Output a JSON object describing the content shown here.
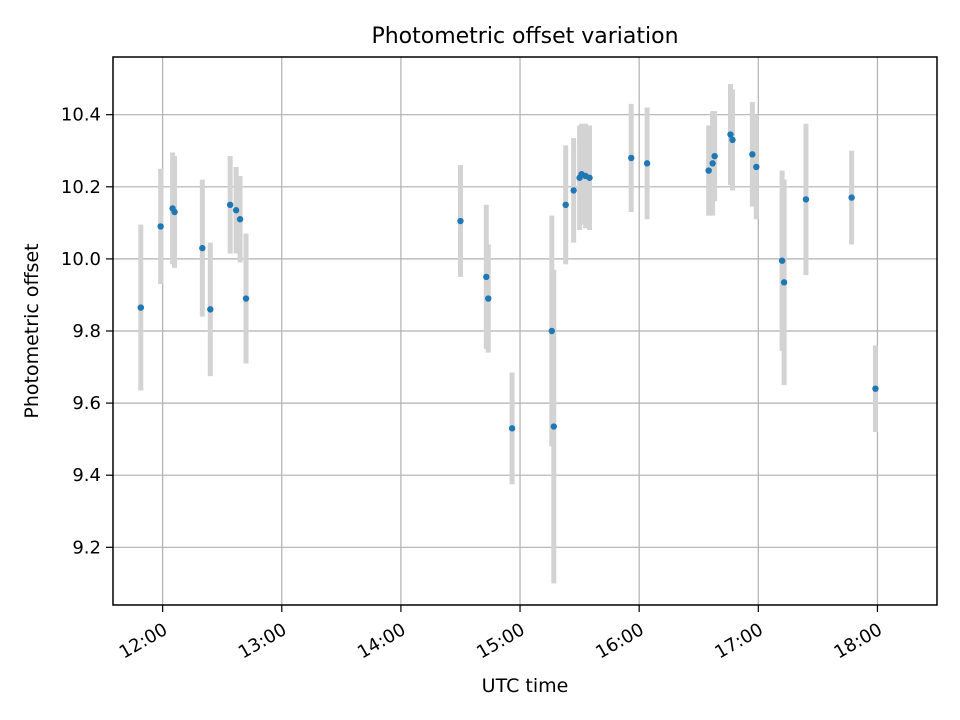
{
  "chart_data": {
    "type": "scatter",
    "title": "Photometric offset variation",
    "xlabel": "UTC time",
    "ylabel": "Photometric offset",
    "x_ticks": [
      "12:00",
      "13:00",
      "14:00",
      "15:00",
      "16:00",
      "17:00",
      "18:00"
    ],
    "y_ticks": [
      "9.2",
      "9.4",
      "9.6",
      "9.8",
      "10.0",
      "10.2",
      "10.4"
    ],
    "xlim": [
      "11:35",
      "18:30"
    ],
    "ylim": [
      9.04,
      10.56
    ],
    "grid": true,
    "point_color": "#1f77b4",
    "errorbar_color": "#d3d3d3",
    "series": [
      {
        "points": [
          {
            "x": "11:49",
            "y": 9.865,
            "yerr": 0.23
          },
          {
            "x": "11:59",
            "y": 10.09,
            "yerr": 0.16
          },
          {
            "x": "12:05",
            "y": 10.14,
            "yerr": 0.155
          },
          {
            "x": "12:06",
            "y": 10.13,
            "yerr": 0.155
          },
          {
            "x": "12:20",
            "y": 10.03,
            "yerr": 0.19
          },
          {
            "x": "12:24",
            "y": 9.86,
            "yerr": 0.185
          },
          {
            "x": "12:34",
            "y": 10.15,
            "yerr": 0.135
          },
          {
            "x": "12:37",
            "y": 10.135,
            "yerr": 0.12
          },
          {
            "x": "12:39",
            "y": 10.11,
            "yerr": 0.12
          },
          {
            "x": "12:42",
            "y": 9.89,
            "yerr": 0.18
          },
          {
            "x": "14:30",
            "y": 10.105,
            "yerr": 0.155
          },
          {
            "x": "14:43",
            "y": 9.95,
            "yerr": 0.2
          },
          {
            "x": "14:44",
            "y": 9.89,
            "yerr": 0.15
          },
          {
            "x": "14:56",
            "y": 9.53,
            "yerr": 0.155
          },
          {
            "x": "15:16",
            "y": 9.8,
            "yerr": 0.32
          },
          {
            "x": "15:17",
            "y": 9.535,
            "yerr": 0.435
          },
          {
            "x": "15:23",
            "y": 10.15,
            "yerr": 0.165
          },
          {
            "x": "15:27",
            "y": 10.19,
            "yerr": 0.145
          },
          {
            "x": "15:30",
            "y": 10.225,
            "yerr": 0.145
          },
          {
            "x": "15:31",
            "y": 10.235,
            "yerr": 0.14
          },
          {
            "x": "15:33",
            "y": 10.23,
            "yerr": 0.145
          },
          {
            "x": "15:35",
            "y": 10.225,
            "yerr": 0.145
          },
          {
            "x": "15:56",
            "y": 10.28,
            "yerr": 0.15
          },
          {
            "x": "16:04",
            "y": 10.265,
            "yerr": 0.155
          },
          {
            "x": "16:35",
            "y": 10.245,
            "yerr": 0.125
          },
          {
            "x": "16:37",
            "y": 10.265,
            "yerr": 0.145
          },
          {
            "x": "16:38",
            "y": 10.285,
            "yerr": 0.125
          },
          {
            "x": "16:46",
            "y": 10.345,
            "yerr": 0.14
          },
          {
            "x": "16:47",
            "y": 10.33,
            "yerr": 0.14
          },
          {
            "x": "16:57",
            "y": 10.29,
            "yerr": 0.145
          },
          {
            "x": "16:59",
            "y": 10.255,
            "yerr": 0.145
          },
          {
            "x": "17:12",
            "y": 9.995,
            "yerr": 0.25
          },
          {
            "x": "17:13",
            "y": 9.935,
            "yerr": 0.285
          },
          {
            "x": "17:24",
            "y": 10.165,
            "yerr": 0.21
          },
          {
            "x": "17:47",
            "y": 10.17,
            "yerr": 0.13
          },
          {
            "x": "17:59",
            "y": 9.64,
            "yerr": 0.12
          }
        ]
      }
    ]
  }
}
